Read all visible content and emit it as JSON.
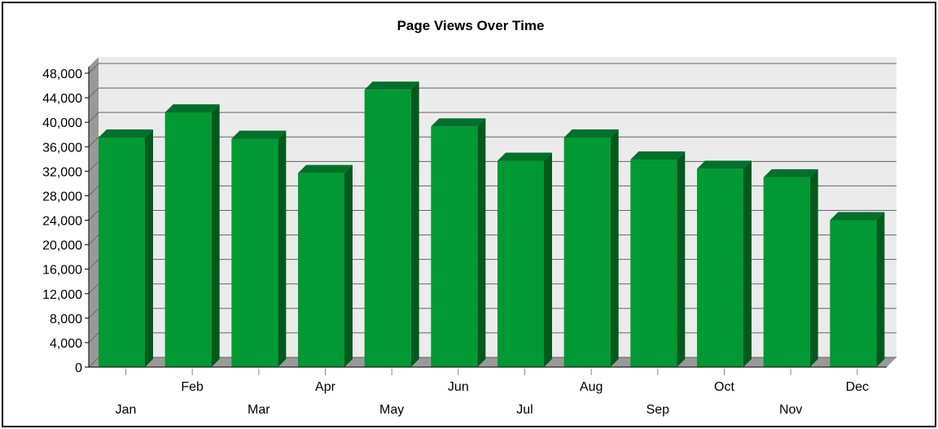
{
  "colors": {
    "bar_front": "#009933",
    "bar_side": "#005a1c",
    "bar_top": "#00702a",
    "plot_bg": "#ebebeb",
    "wall_edge": "#999999",
    "grid": "#666666"
  },
  "chart_data": {
    "type": "bar",
    "title": "Page Views Over Time",
    "xlabel": "",
    "ylabel": "",
    "categories": [
      "Jan",
      "Feb",
      "Mar",
      "Apr",
      "May",
      "Jun",
      "Jul",
      "Aug",
      "Sep",
      "Oct",
      "Nov",
      "Dec"
    ],
    "values": [
      37500,
      41600,
      37300,
      31700,
      45300,
      39300,
      33700,
      37500,
      33900,
      32400,
      31000,
      24000
    ],
    "ylim": [
      0,
      48000
    ],
    "yticks": [
      "0",
      "4,000",
      "8,000",
      "12,000",
      "16,000",
      "20,000",
      "24,000",
      "28,000",
      "32,000",
      "36,000",
      "40,000",
      "44,000",
      "48,000"
    ],
    "grid": true,
    "legend": "none",
    "style": "3d-bar"
  }
}
